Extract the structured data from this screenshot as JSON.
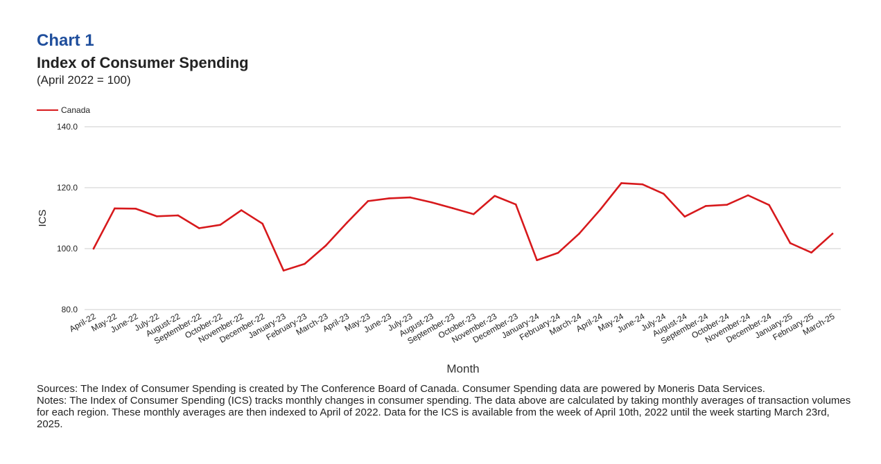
{
  "header": {
    "chart_number": "Chart 1",
    "title": "Index of Consumer Spending",
    "subtitle": "(April 2022 = 100)"
  },
  "chart_data": {
    "type": "line",
    "xlabel": "Month",
    "ylabel": "ICS",
    "ylim": [
      80,
      140
    ],
    "yticks": [
      "80.0",
      "100.0",
      "120.0",
      "140.0"
    ],
    "grid": true,
    "legend_position": "top-left",
    "categories": [
      "April-22",
      "May-22",
      "June-22",
      "July-22",
      "August-22",
      "September-22",
      "October-22",
      "November-22",
      "December-22",
      "January-23",
      "February-23",
      "March-23",
      "April-23",
      "May-23",
      "June-23",
      "July-23",
      "August-23",
      "September-23",
      "October-23",
      "November-23",
      "December-23",
      "January-24",
      "February-24",
      "March-24",
      "April-24",
      "May-24",
      "June-24",
      "July-24",
      "August-24",
      "September-24",
      "October-24",
      "November-24",
      "December-24",
      "January-25",
      "February-25",
      "March-25"
    ],
    "series": [
      {
        "name": "Canada",
        "color": "#d7191c",
        "values": [
          100.0,
          113.2,
          113.1,
          110.6,
          110.9,
          106.7,
          107.8,
          112.6,
          108.2,
          92.8,
          95.0,
          101.0,
          108.5,
          115.6,
          116.5,
          116.8,
          115.2,
          113.3,
          111.3,
          117.3,
          114.5,
          96.2,
          98.6,
          104.9,
          112.8,
          121.5,
          121.1,
          118.0,
          110.5,
          114.0,
          114.4,
          117.5,
          114.3,
          101.8,
          98.7,
          104.9
        ]
      }
    ]
  },
  "footnotes": {
    "sources": "Sources: The Index of Consumer Spending is created by The Conference Board of Canada. Consumer Spending data are powered by Moneris Data Services.",
    "notes": "Notes: The Index of Consumer Spending (ICS) tracks monthly changes in consumer spending. The data above are calculated by taking monthly averages of transaction volumes for each region. These monthly averages are then indexed to April of 2022. Data for the ICS is available from the week of April 10th, 2022 until the week starting March 23rd, 2025."
  }
}
